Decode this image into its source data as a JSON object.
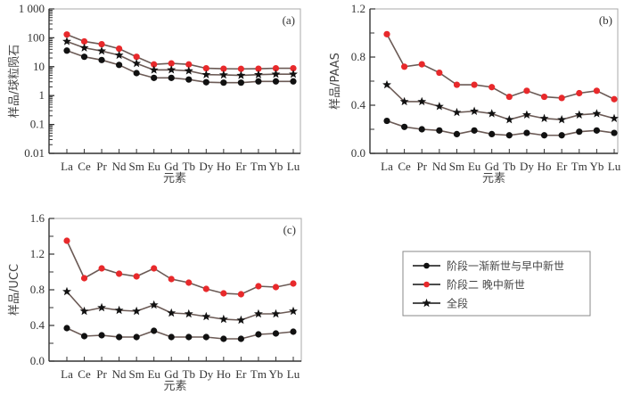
{
  "legend": {
    "entries": [
      {
        "label": "阶段一渐新世与早中新世",
        "marker": "circle",
        "color": "#111111"
      },
      {
        "label": "阶段二 晚中新世",
        "marker": "circle",
        "color": "#e8292b"
      },
      {
        "label": "全段",
        "marker": "star",
        "color": "#111111"
      }
    ]
  },
  "chart_data": [
    {
      "type": "line",
      "panel": "(a)",
      "ylabel": "样品/球粒陨石",
      "xlabel": "元素",
      "yscale": "log",
      "ylim": [
        0.01,
        1000
      ],
      "yticks": [
        0.01,
        0.1,
        1,
        10,
        100,
        1000
      ],
      "ytick_labels": [
        "0.01",
        "0.1",
        "1",
        "10",
        "100",
        "1 000"
      ],
      "categories": [
        "La",
        "Ce",
        "Pr",
        "Nd",
        "Sm",
        "Eu",
        "Gd",
        "Tb",
        "Dy",
        "Ho",
        "Er",
        "Tm",
        "Yb",
        "Lu"
      ],
      "series": [
        {
          "name": "阶段二 晚中新世",
          "color": "#e8292b",
          "marker": "circle",
          "values": [
            130,
            75,
            60,
            42,
            22,
            12,
            13,
            12,
            8.8,
            8.5,
            8.4,
            8.5,
            8.8,
            8.8
          ]
        },
        {
          "name": "全段",
          "color": "#111111",
          "marker": "star",
          "values": [
            75,
            45,
            35,
            25,
            13,
            7.7,
            7.8,
            7.2,
            5.3,
            5.2,
            5.0,
            5.3,
            5.5,
            5.5
          ]
        },
        {
          "name": "阶段一渐新世与早中新世",
          "color": "#111111",
          "marker": "circle",
          "values": [
            36,
            22,
            17,
            11.5,
            6,
            4.1,
            4.1,
            3.6,
            2.9,
            2.8,
            2.8,
            3.1,
            3.1,
            3.1
          ]
        }
      ]
    },
    {
      "type": "line",
      "panel": "(b)",
      "ylabel": "样品/PAAS",
      "xlabel": "元素",
      "yscale": "linear",
      "ylim": [
        0,
        1.2
      ],
      "yticks": [
        0,
        0.4,
        0.8,
        1.2
      ],
      "ytick_labels": [
        "0.0",
        "0.4",
        "0.8",
        "1.2"
      ],
      "minor_step": 0.2,
      "categories": [
        "La",
        "Ce",
        "Pr",
        "Nd",
        "Sm",
        "Eu",
        "Gd",
        "Tb",
        "Dy",
        "Ho",
        "Er",
        "Tm",
        "Yb",
        "Lu"
      ],
      "series": [
        {
          "name": "阶段二 晚中新世",
          "color": "#e8292b",
          "marker": "circle",
          "values": [
            0.99,
            0.72,
            0.74,
            0.67,
            0.57,
            0.57,
            0.55,
            0.47,
            0.52,
            0.47,
            0.46,
            0.5,
            0.52,
            0.45
          ]
        },
        {
          "name": "全段",
          "color": "#111111",
          "marker": "star",
          "values": [
            0.57,
            0.43,
            0.43,
            0.39,
            0.34,
            0.35,
            0.33,
            0.28,
            0.32,
            0.29,
            0.28,
            0.32,
            0.33,
            0.29
          ]
        },
        {
          "name": "阶段一渐新世与早中新世",
          "color": "#111111",
          "marker": "circle",
          "values": [
            0.27,
            0.22,
            0.2,
            0.19,
            0.16,
            0.19,
            0.16,
            0.15,
            0.17,
            0.15,
            0.15,
            0.18,
            0.19,
            0.17
          ]
        }
      ]
    },
    {
      "type": "line",
      "panel": "(c)",
      "ylabel": "样品/UCC",
      "xlabel": "元素",
      "yscale": "linear",
      "ylim": [
        0,
        1.6
      ],
      "yticks": [
        0,
        0.4,
        0.8,
        1.2,
        1.6
      ],
      "ytick_labels": [
        "0.0",
        "0.4",
        "0.8",
        "1.2",
        "1.6"
      ],
      "minor_step": 0.2,
      "categories": [
        "La",
        "Ce",
        "Pr",
        "Nd",
        "Sm",
        "Eu",
        "Gd",
        "Tb",
        "Dy",
        "Ho",
        "Er",
        "Tm",
        "Yb",
        "Lu"
      ],
      "series": [
        {
          "name": "阶段二 晚中新世",
          "color": "#e8292b",
          "marker": "circle",
          "values": [
            1.35,
            0.93,
            1.04,
            0.98,
            0.95,
            1.04,
            0.92,
            0.88,
            0.81,
            0.76,
            0.75,
            0.84,
            0.83,
            0.87
          ]
        },
        {
          "name": "全段",
          "color": "#111111",
          "marker": "star",
          "values": [
            0.78,
            0.56,
            0.6,
            0.57,
            0.56,
            0.63,
            0.54,
            0.53,
            0.5,
            0.47,
            0.46,
            0.53,
            0.53,
            0.56
          ]
        },
        {
          "name": "阶段一渐新世与早中新世",
          "color": "#111111",
          "marker": "circle",
          "values": [
            0.37,
            0.28,
            0.29,
            0.27,
            0.27,
            0.34,
            0.27,
            0.27,
            0.27,
            0.25,
            0.25,
            0.3,
            0.31,
            0.33
          ]
        }
      ]
    }
  ]
}
